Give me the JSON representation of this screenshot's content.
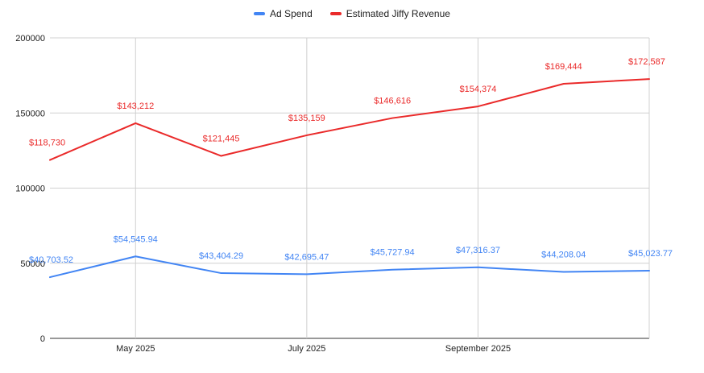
{
  "chart_data": {
    "type": "line",
    "title": "",
    "xlabel": "",
    "ylabel": "",
    "ylim": [
      0,
      200000
    ],
    "y_ticks": [
      0,
      50000,
      100000,
      150000,
      200000
    ],
    "y_tick_labels": [
      "0",
      "50000",
      "100000",
      "150000",
      "200000"
    ],
    "x": [
      0,
      1,
      2,
      3,
      4,
      5,
      6,
      7
    ],
    "x_ticks": [
      {
        "index": 1,
        "label": "May 2025"
      },
      {
        "index": 3,
        "label": "July 2025"
      },
      {
        "index": 5,
        "label": "September 2025"
      }
    ],
    "grid": true,
    "legend_position": "top-center",
    "series": [
      {
        "name": "Ad Spend",
        "color": "#4285f4",
        "label_color": "#4285f4",
        "values": [
          40703.52,
          54545.94,
          43404.29,
          42695.47,
          45727.94,
          47316.37,
          44208.04,
          45023.77
        ],
        "labels": [
          "$40,703.52",
          "$54,545.94",
          "$43,404.29",
          "$42,695.47",
          "$45,727.94",
          "$47,316.37",
          "$44,208.04",
          "$45,023.77"
        ]
      },
      {
        "name": "Estimated Jiffy Revenue",
        "color": "#ea2a2a",
        "label_color": "#ea2a2a",
        "values": [
          118730,
          143212,
          121445,
          135159,
          146616,
          154374,
          169444,
          172587
        ],
        "labels": [
          "$118,730",
          "$143,212",
          "$121,445",
          "$135,159",
          "$146,616",
          "$154,374",
          "$169,444",
          "$172,587"
        ]
      }
    ]
  }
}
